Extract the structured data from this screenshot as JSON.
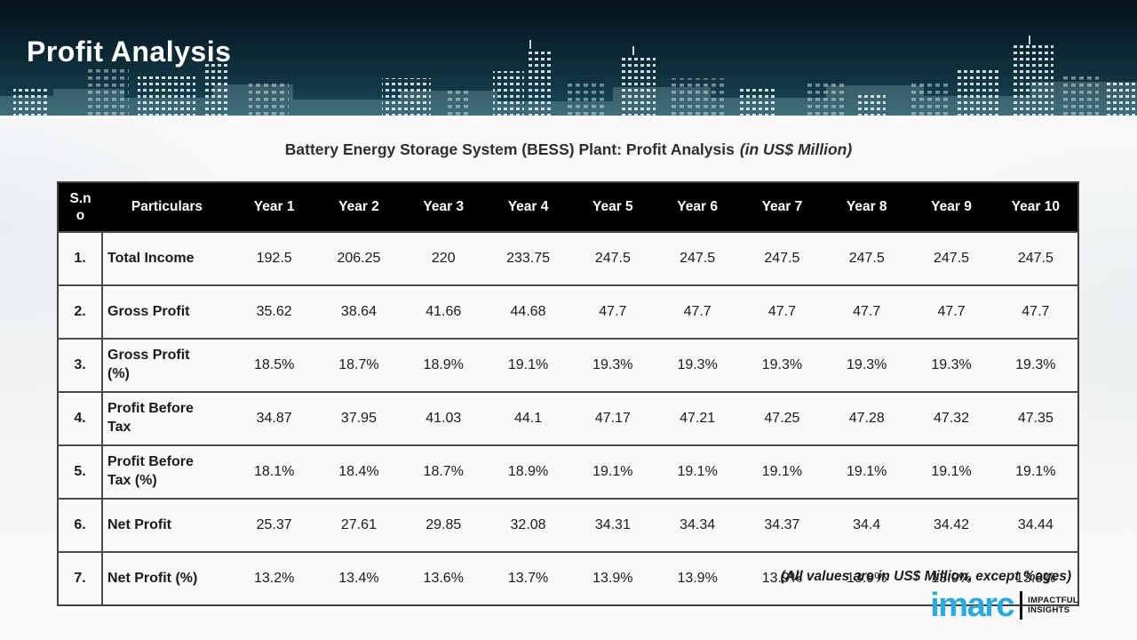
{
  "header": {
    "title": "Profit Analysis"
  },
  "table_title": {
    "main": "Battery Energy Storage System (BESS) Plant: Profit Analysis",
    "unit": "(in US$ Million)"
  },
  "table": {
    "columns": [
      "S.no",
      "Particulars",
      "Year 1",
      "Year 2",
      "Year 3",
      "Year 4",
      "Year 5",
      "Year 6",
      "Year 7",
      "Year 8",
      "Year 9",
      "Year 10"
    ],
    "rows": [
      {
        "sno": "1.",
        "label": "Total Income",
        "values": [
          "192.5",
          "206.25",
          "220",
          "233.75",
          "247.5",
          "247.5",
          "247.5",
          "247.5",
          "247.5",
          "247.5"
        ]
      },
      {
        "sno": "2.",
        "label": "Gross Profit",
        "values": [
          "35.62",
          "38.64",
          "41.66",
          "44.68",
          "47.7",
          "47.7",
          "47.7",
          "47.7",
          "47.7",
          "47.7"
        ]
      },
      {
        "sno": "3.",
        "label": "Gross Profit (%)",
        "values": [
          "18.5%",
          "18.7%",
          "18.9%",
          "19.1%",
          "19.3%",
          "19.3%",
          "19.3%",
          "19.3%",
          "19.3%",
          "19.3%"
        ]
      },
      {
        "sno": "4.",
        "label": "Profit Before Tax",
        "values": [
          "34.87",
          "37.95",
          "41.03",
          "44.1",
          "47.17",
          "47.21",
          "47.25",
          "47.28",
          "47.32",
          "47.35"
        ]
      },
      {
        "sno": "5.",
        "label": "Profit Before Tax (%)",
        "values": [
          "18.1%",
          "18.4%",
          "18.7%",
          "18.9%",
          "19.1%",
          "19.1%",
          "19.1%",
          "19.1%",
          "19.1%",
          "19.1%"
        ]
      },
      {
        "sno": "6.",
        "label": "Net Profit",
        "values": [
          "25.37",
          "27.61",
          "29.85",
          "32.08",
          "34.31",
          "34.34",
          "34.37",
          "34.4",
          "34.42",
          "34.44"
        ]
      },
      {
        "sno": "7.",
        "label": "Net Profit (%)",
        "values": [
          "13.2%",
          "13.4%",
          "13.6%",
          "13.7%",
          "13.9%",
          "13.9%",
          "13.9%",
          "13.9%",
          "13.9%",
          "13.9%"
        ]
      }
    ]
  },
  "footnote": "(All values are in US$ Million, except %ages)",
  "logo": {
    "brand": "imarc",
    "tagline_line1": "IMPACTFUL",
    "tagline_line2": "INSIGHTS",
    "brand_color": "#29abe2"
  },
  "colors": {
    "banner_top": "#04121a",
    "banner_bottom": "#16505c",
    "table_header_bg": "#000000",
    "table_header_text": "#ffffff",
    "row_bg": "#f9f9f9",
    "grid_line": "#4a4a4a",
    "body_text": "#1b1b1b"
  }
}
